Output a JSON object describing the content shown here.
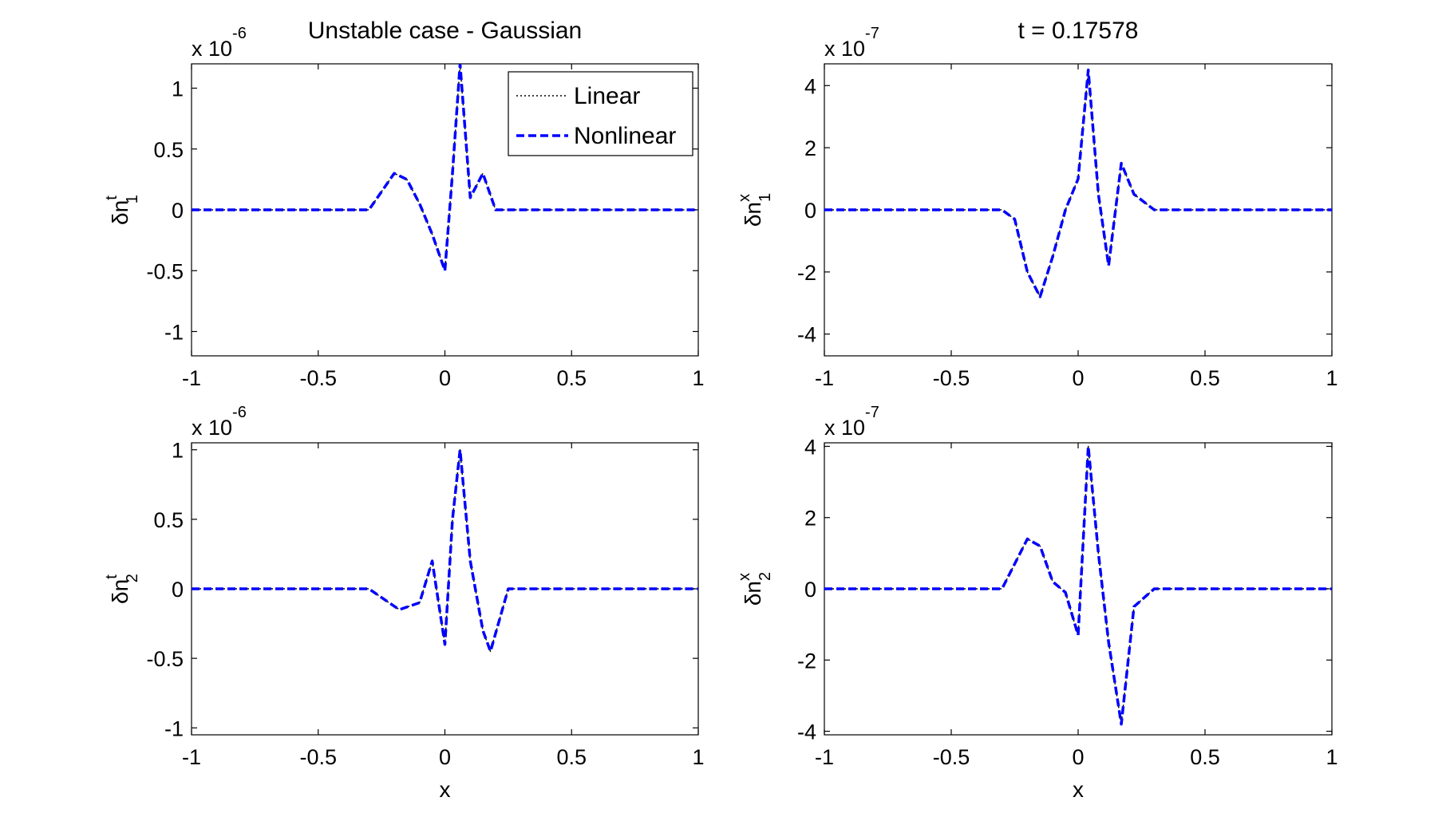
{
  "colors": {
    "nonlinear": "#0000ff",
    "linear": "#000000",
    "axes": "#000000",
    "background": "#ffffff"
  },
  "chart_data": [
    {
      "type": "line",
      "title": "Unstable case - Gaussian",
      "xlabel": "",
      "ylabel_base": "δn",
      "ylabel_sup": "t",
      "ylabel_sub": "1",
      "exponent_label": "x 10",
      "exponent": "-6",
      "xlim": [
        -1,
        1
      ],
      "ylim": [
        -1.2,
        1.2
      ],
      "xticks": [
        "-1",
        "-0.5",
        "0",
        "0.5",
        "1"
      ],
      "yticks": [
        {
          "v": -1,
          "t": "-1"
        },
        {
          "v": -0.5,
          "t": "-0.5"
        },
        {
          "v": 0,
          "t": "0"
        },
        {
          "v": 0.5,
          "t": "0.5"
        },
        {
          "v": 1,
          "t": "1"
        }
      ],
      "legend": {
        "position": "top-right",
        "entries": [
          {
            "label": "Linear",
            "style": "dotted"
          },
          {
            "label": "Nonlinear",
            "style": "dashed"
          }
        ]
      },
      "series": [
        {
          "name": "Linear",
          "style": "dotted",
          "x": [
            -1,
            -0.5,
            -0.3,
            -0.2,
            -0.15,
            -0.1,
            -0.05,
            0,
            0.03,
            0.06,
            0.1,
            0.15,
            0.2,
            0.5,
            1
          ],
          "y": [
            0,
            0,
            0,
            0.3,
            0.25,
            0.05,
            -0.2,
            -0.5,
            0.3,
            1.2,
            0.1,
            0.3,
            0,
            0,
            0
          ]
        },
        {
          "name": "Nonlinear",
          "style": "dashed",
          "x": [
            -1,
            -0.5,
            -0.3,
            -0.2,
            -0.15,
            -0.1,
            -0.05,
            0,
            0.03,
            0.06,
            0.1,
            0.15,
            0.2,
            0.5,
            1
          ],
          "y": [
            0,
            0,
            0,
            0.3,
            0.25,
            0.05,
            -0.2,
            -0.5,
            0.3,
            1.2,
            0.1,
            0.3,
            0,
            0,
            0
          ]
        }
      ]
    },
    {
      "type": "line",
      "title": "t = 0.17578",
      "xlabel": "",
      "ylabel_base": "δn",
      "ylabel_sup": "x",
      "ylabel_sub": "1",
      "exponent_label": "x 10",
      "exponent": "-7",
      "xlim": [
        -1,
        1
      ],
      "ylim": [
        -4.7,
        4.7
      ],
      "xticks": [
        "-1",
        "-0.5",
        "0",
        "0.5",
        "1"
      ],
      "yticks": [
        {
          "v": -4,
          "t": "-4"
        },
        {
          "v": -2,
          "t": "-2"
        },
        {
          "v": 0,
          "t": "0"
        },
        {
          "v": 2,
          "t": "2"
        },
        {
          "v": 4,
          "t": "4"
        }
      ],
      "series": [
        {
          "name": "Linear",
          "style": "dotted",
          "x": [
            -1,
            -0.5,
            -0.3,
            -0.25,
            -0.2,
            -0.15,
            -0.1,
            -0.05,
            0,
            0.04,
            0.08,
            0.12,
            0.17,
            0.22,
            0.3,
            0.5,
            1
          ],
          "y": [
            0,
            0,
            0,
            -0.3,
            -2.0,
            -2.8,
            -1.5,
            0,
            1.0,
            4.5,
            0.5,
            -1.8,
            1.5,
            0.5,
            0,
            0,
            0
          ]
        },
        {
          "name": "Nonlinear",
          "style": "dashed",
          "x": [
            -1,
            -0.5,
            -0.3,
            -0.25,
            -0.2,
            -0.15,
            -0.1,
            -0.05,
            0,
            0.04,
            0.08,
            0.12,
            0.17,
            0.22,
            0.3,
            0.5,
            1
          ],
          "y": [
            0,
            0,
            0,
            -0.3,
            -2.0,
            -2.8,
            -1.5,
            0,
            1.0,
            4.5,
            0.5,
            -1.8,
            1.5,
            0.5,
            0,
            0,
            0
          ]
        }
      ]
    },
    {
      "type": "line",
      "title": "",
      "xlabel": "x",
      "ylabel_base": "δn",
      "ylabel_sup": "t",
      "ylabel_sub": "2",
      "exponent_label": "x 10",
      "exponent": "-6",
      "xlim": [
        -1,
        1
      ],
      "ylim": [
        -1.05,
        1.05
      ],
      "xticks": [
        "-1",
        "-0.5",
        "0",
        "0.5",
        "1"
      ],
      "yticks": [
        {
          "v": -1,
          "t": "-1"
        },
        {
          "v": -0.5,
          "t": "-0.5"
        },
        {
          "v": 0,
          "t": "0"
        },
        {
          "v": 0.5,
          "t": "0.5"
        },
        {
          "v": 1,
          "t": "1"
        }
      ],
      "series": [
        {
          "name": "Linear",
          "style": "dotted",
          "x": [
            -1,
            -0.5,
            -0.3,
            -0.22,
            -0.18,
            -0.1,
            -0.05,
            0,
            0.03,
            0.06,
            0.1,
            0.15,
            0.18,
            0.25,
            0.5,
            1
          ],
          "y": [
            0,
            0,
            0,
            -0.1,
            -0.15,
            -0.1,
            0.2,
            -0.4,
            0.5,
            1.0,
            0.2,
            -0.3,
            -0.45,
            0,
            0,
            0
          ]
        },
        {
          "name": "Nonlinear",
          "style": "dashed",
          "x": [
            -1,
            -0.5,
            -0.3,
            -0.22,
            -0.18,
            -0.1,
            -0.05,
            0,
            0.03,
            0.06,
            0.1,
            0.15,
            0.18,
            0.25,
            0.5,
            1
          ],
          "y": [
            0,
            0,
            0,
            -0.1,
            -0.15,
            -0.1,
            0.2,
            -0.4,
            0.5,
            1.0,
            0.2,
            -0.3,
            -0.45,
            0,
            0,
            0
          ]
        }
      ]
    },
    {
      "type": "line",
      "title": "",
      "xlabel": "x",
      "ylabel_base": "δn",
      "ylabel_sup": "x",
      "ylabel_sub": "2",
      "exponent_label": "x 10",
      "exponent": "-7",
      "xlim": [
        -1,
        1
      ],
      "ylim": [
        -4.1,
        4.1
      ],
      "xticks": [
        "-1",
        "-0.5",
        "0",
        "0.5",
        "1"
      ],
      "yticks": [
        {
          "v": -4,
          "t": "-4"
        },
        {
          "v": -2,
          "t": "-2"
        },
        {
          "v": 0,
          "t": "0"
        },
        {
          "v": 2,
          "t": "2"
        },
        {
          "v": 4,
          "t": "4"
        }
      ],
      "series": [
        {
          "name": "Linear",
          "style": "dotted",
          "x": [
            -1,
            -0.5,
            -0.3,
            -0.2,
            -0.15,
            -0.1,
            -0.05,
            0,
            0.04,
            0.08,
            0.12,
            0.17,
            0.22,
            0.3,
            0.5,
            1
          ],
          "y": [
            0,
            0,
            0,
            1.4,
            1.2,
            0.2,
            -0.1,
            -1.3,
            4.0,
            1.0,
            -1.5,
            -3.8,
            -0.5,
            0,
            0,
            0
          ]
        },
        {
          "name": "Nonlinear",
          "style": "dashed",
          "x": [
            -1,
            -0.5,
            -0.3,
            -0.2,
            -0.15,
            -0.1,
            -0.05,
            0,
            0.04,
            0.08,
            0.12,
            0.17,
            0.22,
            0.3,
            0.5,
            1
          ],
          "y": [
            0,
            0,
            0,
            1.4,
            1.2,
            0.2,
            -0.1,
            -1.3,
            4.0,
            1.0,
            -1.5,
            -3.8,
            -0.5,
            0,
            0,
            0
          ]
        }
      ]
    }
  ]
}
